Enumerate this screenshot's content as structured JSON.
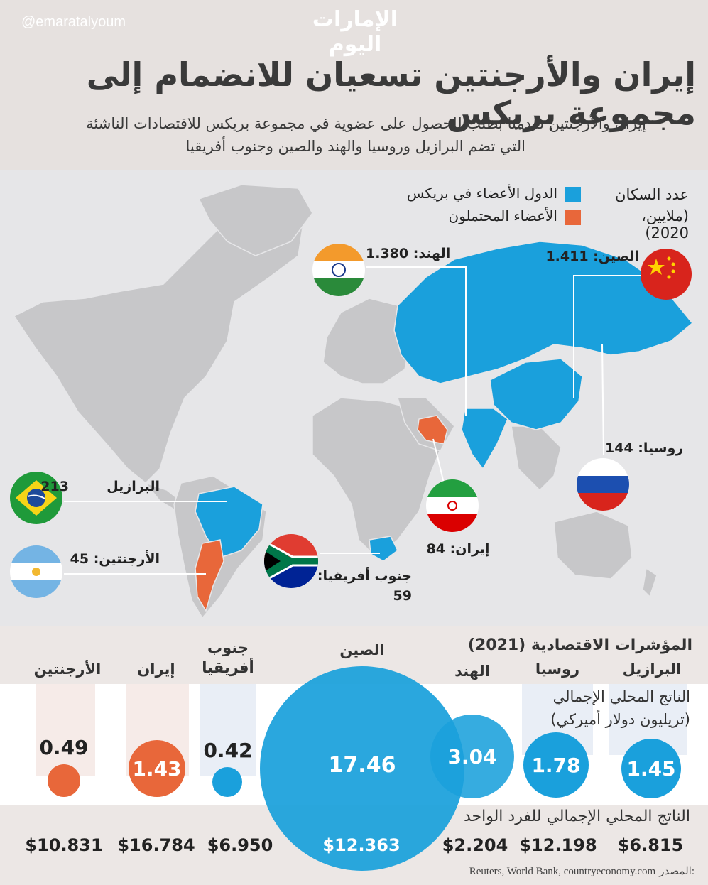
{
  "header": {
    "handle": "@emaratalyoum",
    "logo": "الإمارات اليوم",
    "title": "إيران والأرجنتين تسعيان للانضمام إلى مجموعة بريكس",
    "subtitle_line1": "إيران والأرجنتين تقدمتا بطلب للحصول على عضوية في مجموعة بريكس للاقتصادات الناشئة",
    "subtitle_line2": "التي تضم البرازيل وروسيا والهند والصين وجنوب أفريقيا"
  },
  "legend": {
    "population_title_line1": "عدد السكان",
    "population_title_line2": "(ملايين، 2020)",
    "members_label": "الدول الأعضاء في بريكس",
    "members_color": "#1aa0dc",
    "candidates_label": "الأعضاء المحتملون",
    "candidates_color": "#e8673a"
  },
  "countries": {
    "china": "الصين: 1.411",
    "india": "الهند: 1.380",
    "russia": "روسيا: 144",
    "brazil": "البرازيل",
    "brazil_value": "213",
    "argentina": "الأرجنتين: 45",
    "iran": "إيران: 84",
    "south_africa_line1": "جنوب أفريقيا:",
    "south_africa_line2": "59"
  },
  "economy": {
    "section_title": "المؤشرات الاقتصادية (2021)",
    "gdp_label_line1": "الناتج المحلي الإجمالي",
    "gdp_label_line2": "(تريليون دولار أميركي)",
    "gdppc_label": "الناتج المحلي الإجمالي للفرد الواحد",
    "heads": {
      "brazil": "البرازيل",
      "russia": "روسيا",
      "india": "الهند",
      "china": "الصين",
      "south_africa_line1": "جنوب",
      "south_africa_line2": "أفريقيا",
      "iran": "إيران",
      "argentina": "الأرجنتين"
    },
    "gdp": {
      "brazil": "1.45",
      "russia": "1.78",
      "india": "3.04",
      "china": "17.46",
      "south_africa": "0.42",
      "iran": "1.43",
      "argentina": "0.49"
    },
    "gdppc": {
      "brazil": "$6.815",
      "russia": "$12.198",
      "india": "$2.204",
      "china": "$12.363",
      "south_africa": "$6.950",
      "iran": "$16.784",
      "argentina": "$10.831"
    },
    "source_label": "المصدر:",
    "source_text": "Reuters, World Bank, countryeconomy.com"
  },
  "colors": {
    "member_blue": "#1aa0dc",
    "candidate_orange": "#e8673a",
    "land_gray": "#c7c7c9"
  }
}
